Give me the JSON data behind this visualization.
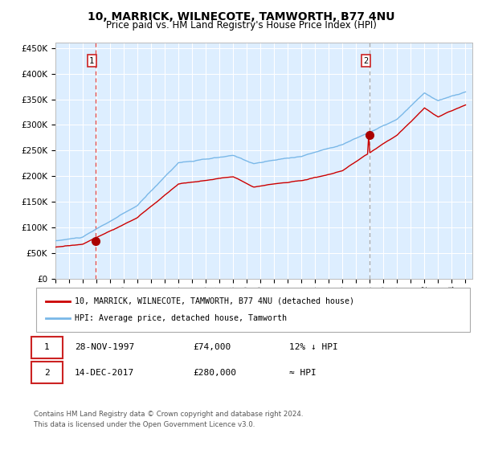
{
  "title": "10, MARRICK, WILNECOTE, TAMWORTH, B77 4NU",
  "subtitle": "Price paid vs. HM Land Registry's House Price Index (HPI)",
  "title_fontsize": 10,
  "subtitle_fontsize": 8.5,
  "bg_color": "#ddeeff",
  "grid_color": "#ffffff",
  "ylim": [
    0,
    460000
  ],
  "yticks": [
    0,
    50000,
    100000,
    150000,
    200000,
    250000,
    300000,
    350000,
    400000,
    450000
  ],
  "ytick_labels": [
    "£0",
    "£50K",
    "£100K",
    "£150K",
    "£200K",
    "£250K",
    "£300K",
    "£350K",
    "£400K",
    "£450K"
  ],
  "xlim_start": 1995.0,
  "xlim_end": 2025.5,
  "marker1_x": 1997.91,
  "marker1_y": 74000,
  "marker2_x": 2017.95,
  "marker2_y": 280000,
  "vline1_x": 1997.91,
  "vline2_x": 2017.95,
  "vline1_color": "#dd4444",
  "vline2_color": "#aaaaaa",
  "legend_label1": "10, MARRICK, WILNECOTE, TAMWORTH, B77 4NU (detached house)",
  "legend_label2": "HPI: Average price, detached house, Tamworth",
  "footer1": "Contains HM Land Registry data © Crown copyright and database right 2024.",
  "footer2": "This data is licensed under the Open Government Licence v3.0.",
  "annotation1_date": "28-NOV-1997",
  "annotation1_price": "£74,000",
  "annotation1_hpi": "12% ↓ HPI",
  "annotation2_date": "14-DEC-2017",
  "annotation2_price": "£280,000",
  "annotation2_hpi": "≈ HPI",
  "hpi_color": "#7ab8e8",
  "price_color": "#cc0000",
  "marker_color": "#aa0000"
}
